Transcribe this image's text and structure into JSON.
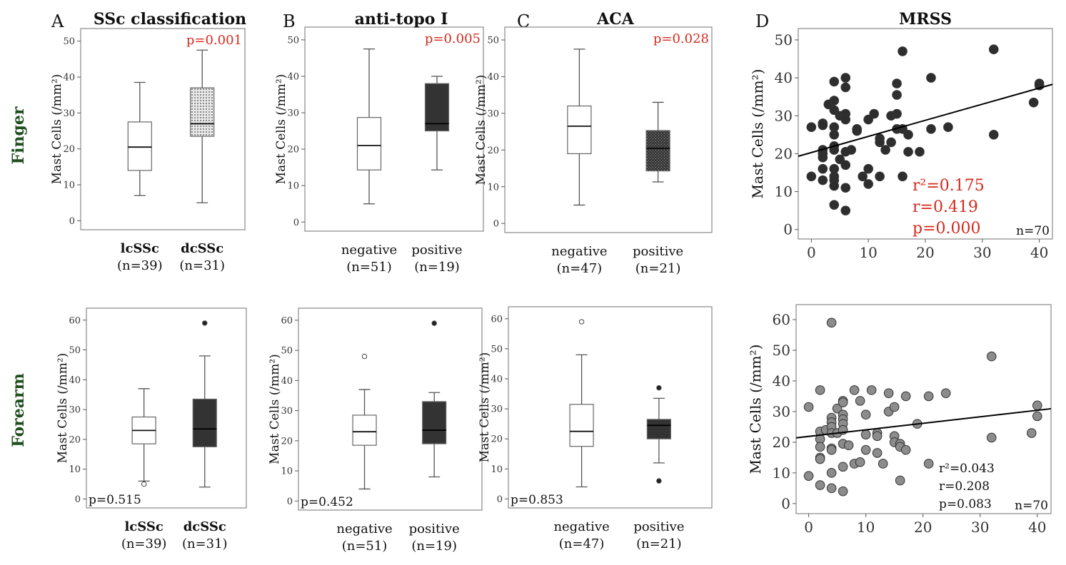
{
  "row_labels": [
    "Finger",
    "Forearm"
  ],
  "panel_letters": [
    "A",
    "B",
    "C",
    "D"
  ],
  "colors": {
    "row_label": "#1f4f1f",
    "significant": "#d42a1e",
    "dark_box": "#333333",
    "scatter_dark": "#2e2e2e",
    "scatter_gray": "#8c8c8c"
  },
  "chart_data": [
    {
      "type": "box",
      "row": "Finger",
      "panel": "A",
      "title": "SSc classification",
      "ylabel": "Mast Cells (/mm²)",
      "ylim": [
        -2.5,
        53.5
      ],
      "yticks": [
        0,
        10,
        20,
        30,
        40,
        50
      ],
      "pvalue": "p=0.001",
      "p_significant": true,
      "groups": [
        {
          "name": "lcSSc",
          "n": "(n=39)",
          "bold": true,
          "fill": "white",
          "min": 7,
          "q1": 14,
          "median": 20.5,
          "q3": 27.5,
          "max": 38.5,
          "outliers": []
        },
        {
          "name": "dcSSc",
          "n": "(n=31)",
          "bold": true,
          "fill": "dotted",
          "min": 5,
          "q1": 23.5,
          "median": 27,
          "q3": 37,
          "max": 47.5,
          "outliers": []
        }
      ]
    },
    {
      "type": "box",
      "row": "Finger",
      "panel": "B",
      "title": "anti-topo I",
      "ylabel": "Mast Cells (/mm²)",
      "ylim": [
        -2.5,
        53.5
      ],
      "yticks": [
        0,
        10,
        20,
        30,
        40,
        50
      ],
      "pvalue": "p=0.005",
      "p_significant": true,
      "groups": [
        {
          "name": "negative",
          "n": "(n=51)",
          "fill": "white",
          "min": 5,
          "q1": 14.3,
          "median": 21,
          "q3": 28.7,
          "max": 47.5,
          "outliers": []
        },
        {
          "name": "positive",
          "n": "(n=19)",
          "fill": "dark",
          "min": 14.3,
          "q1": 25,
          "median": 27,
          "q3": 38,
          "max": 40,
          "outliers": []
        }
      ]
    },
    {
      "type": "box",
      "row": "Finger",
      "panel": "C",
      "title": "ACA",
      "ylabel": "Mast Cells (/mm²)",
      "ylim": [
        -2.5,
        53.5
      ],
      "yticks": [
        0,
        10,
        20,
        30,
        40,
        50
      ],
      "pvalue": "p=0.028",
      "p_significant": true,
      "groups": [
        {
          "name": "negative",
          "n": "(n=47)",
          "fill": "white",
          "min": 5,
          "q1": 19,
          "median": 26.5,
          "q3": 32,
          "max": 47.5,
          "outliers": []
        },
        {
          "name": "positive",
          "n": "(n=21)",
          "fill": "hatched",
          "min": 11.3,
          "q1": 14.3,
          "median": 20.5,
          "q3": 25.3,
          "max": 33,
          "outliers": []
        }
      ]
    },
    {
      "type": "scatter",
      "row": "Finger",
      "panel": "D",
      "title": "MRSS",
      "ylabel": "Mast Cells (/mm²)",
      "xlim": [
        -2.3,
        42.3
      ],
      "ylim": [
        -2.5,
        53
      ],
      "xticks": [
        0,
        10,
        20,
        30,
        40
      ],
      "yticks": [
        0,
        10,
        20,
        30,
        40,
        50
      ],
      "stats": [
        "r²=0.175",
        "r=0.419",
        "p=0.000"
      ],
      "n": "n=70",
      "p_significant": true,
      "fit": {
        "intercept": 20.3,
        "slope": 0.425
      },
      "marker": "dark",
      "points": [
        [
          0,
          27
        ],
        [
          0,
          14
        ],
        [
          2,
          28
        ],
        [
          2,
          27.5
        ],
        [
          2,
          21
        ],
        [
          2,
          20
        ],
        [
          2,
          19
        ],
        [
          2,
          16
        ],
        [
          2,
          13
        ],
        [
          3,
          33
        ],
        [
          4,
          39
        ],
        [
          4,
          34
        ],
        [
          4,
          31.5
        ],
        [
          4,
          27
        ],
        [
          4,
          25
        ],
        [
          4,
          22
        ],
        [
          4,
          21
        ],
        [
          4,
          16
        ],
        [
          4,
          14
        ],
        [
          4,
          13
        ],
        [
          4,
          11.5
        ],
        [
          4,
          6.5
        ],
        [
          5,
          30
        ],
        [
          5,
          18.5
        ],
        [
          6,
          40
        ],
        [
          6,
          37.5
        ],
        [
          6,
          30.5
        ],
        [
          6,
          29
        ],
        [
          6,
          20.5
        ],
        [
          6,
          17
        ],
        [
          6,
          11
        ],
        [
          6,
          5
        ],
        [
          7,
          21
        ],
        [
          8,
          26.5
        ],
        [
          8,
          26
        ],
        [
          9,
          14
        ],
        [
          10,
          29
        ],
        [
          10,
          16
        ],
        [
          10,
          12
        ],
        [
          11,
          30.5
        ],
        [
          12,
          24
        ],
        [
          12,
          23
        ],
        [
          12,
          14
        ],
        [
          13,
          21
        ],
        [
          14,
          30
        ],
        [
          14,
          23
        ],
        [
          15,
          38.5
        ],
        [
          15,
          35.5
        ],
        [
          15,
          30.5
        ],
        [
          15,
          26.5
        ],
        [
          16,
          47
        ],
        [
          16,
          26.5
        ],
        [
          16,
          14
        ],
        [
          17,
          25
        ],
        [
          17,
          20.5
        ],
        [
          19,
          20.5
        ],
        [
          21,
          40
        ],
        [
          21,
          26.5
        ],
        [
          24,
          27
        ],
        [
          32,
          47.5
        ],
        [
          32,
          25
        ],
        [
          39,
          33.5
        ],
        [
          40,
          38.5
        ],
        [
          40,
          38
        ]
      ]
    },
    {
      "type": "box",
      "row": "Forearm",
      "panel": "A",
      "ylabel": "Mast Cells (/mm²)",
      "ylim": [
        -3,
        64
      ],
      "yticks": [
        0,
        10,
        20,
        30,
        40,
        50,
        60
      ],
      "pvalue": "p=0.515",
      "p_significant": false,
      "groups": [
        {
          "name": "lcSSc",
          "n": "(n=39)",
          "bold": true,
          "fill": "white",
          "min": 6,
          "q1": 18.5,
          "median": 23,
          "q3": 27.5,
          "max": 37,
          "outliers": [
            {
              "v": 5,
              "open": true
            }
          ]
        },
        {
          "name": "dcSSc",
          "n": "(n=31)",
          "bold": true,
          "fill": "dark",
          "min": 4,
          "q1": 17.5,
          "median": 23.5,
          "q3": 33.5,
          "max": 48,
          "outliers": [
            {
              "v": 59,
              "open": false
            }
          ]
        }
      ]
    },
    {
      "type": "box",
      "row": "Forearm",
      "panel": "B",
      "ylabel": "Mast Cells (/mm²)",
      "ylim": [
        -3,
        64
      ],
      "yticks": [
        0,
        10,
        20,
        30,
        40,
        50,
        60
      ],
      "pvalue": "p=0.452",
      "p_significant": false,
      "groups": [
        {
          "name": "negative",
          "n": "(n=51)",
          "fill": "white",
          "min": 4,
          "q1": 18.5,
          "median": 23,
          "q3": 28.5,
          "max": 37,
          "outliers": [
            {
              "v": 48,
              "open": true
            }
          ]
        },
        {
          "name": "positive",
          "n": "(n=19)",
          "fill": "dark",
          "min": 8,
          "q1": 19,
          "median": 23.5,
          "q3": 33,
          "max": 36,
          "outliers": [
            {
              "v": 59,
              "open": false
            }
          ]
        }
      ]
    },
    {
      "type": "box",
      "row": "Forearm",
      "panel": "C",
      "ylabel": "Mast Cells (/mm²)",
      "ylim": [
        -3,
        64
      ],
      "yticks": [
        0,
        10,
        20,
        30,
        40,
        50,
        60
      ],
      "pvalue": "p=0.853",
      "p_significant": false,
      "groups": [
        {
          "name": "negative",
          "n": "(n=47)",
          "fill": "white",
          "min": 4,
          "q1": 17.5,
          "median": 22.5,
          "q3": 31.5,
          "max": 48,
          "outliers": [
            {
              "v": 59,
              "open": true
            }
          ]
        },
        {
          "name": "positive",
          "n": "(n=21)",
          "fill": "dark",
          "min": 12,
          "q1": 20,
          "median": 24.5,
          "q3": 26.5,
          "max": 33.5,
          "outliers": [
            {
              "v": 37,
              "open": false
            },
            {
              "v": 6,
              "open": false
            }
          ]
        }
      ]
    },
    {
      "type": "scatter",
      "row": "Forearm",
      "panel": "D",
      "ylabel": "Mast Cells (/mm²)",
      "xlim": [
        -2.2,
        42.4
      ],
      "ylim": [
        -3.3,
        64.9
      ],
      "xticks": [
        0,
        10,
        20,
        30,
        40
      ],
      "yticks": [
        0,
        10,
        20,
        30,
        40,
        50,
        60
      ],
      "stats": [
        "r²=0.043",
        "r=0.208",
        "p=0.083"
      ],
      "n": "n=70",
      "p_significant": false,
      "fit": {
        "intercept": 21.9,
        "slope": 0.213
      },
      "marker": "gray",
      "points": [
        [
          0,
          31.5
        ],
        [
          0,
          9
        ],
        [
          2,
          37
        ],
        [
          2,
          23.5
        ],
        [
          2,
          21
        ],
        [
          2,
          18.5
        ],
        [
          2,
          15
        ],
        [
          2,
          14.5
        ],
        [
          2,
          6
        ],
        [
          3,
          24
        ],
        [
          4,
          59
        ],
        [
          4,
          28
        ],
        [
          4,
          26.5
        ],
        [
          4,
          25
        ],
        [
          4,
          23
        ],
        [
          4,
          18
        ],
        [
          4,
          17.5
        ],
        [
          4,
          10
        ],
        [
          4,
          5
        ],
        [
          5,
          31
        ],
        [
          5,
          23
        ],
        [
          6,
          33.5
        ],
        [
          6,
          33
        ],
        [
          6,
          29
        ],
        [
          6,
          27.5
        ],
        [
          6,
          26
        ],
        [
          6,
          24
        ],
        [
          6,
          19.5
        ],
        [
          6,
          12
        ],
        [
          6,
          4
        ],
        [
          7,
          19
        ],
        [
          8,
          37
        ],
        [
          8,
          13
        ],
        [
          9,
          33.5
        ],
        [
          9,
          13.5
        ],
        [
          10,
          29
        ],
        [
          10,
          22.5
        ],
        [
          10,
          17.5
        ],
        [
          11,
          37
        ],
        [
          12,
          23
        ],
        [
          12,
          22
        ],
        [
          12,
          16.5
        ],
        [
          13,
          13
        ],
        [
          14,
          36
        ],
        [
          14,
          30
        ],
        [
          15,
          31.5
        ],
        [
          15,
          22
        ],
        [
          15,
          20
        ],
        [
          16,
          19.5
        ],
        [
          16,
          18.5
        ],
        [
          16,
          7.5
        ],
        [
          17,
          35
        ],
        [
          17,
          17.5
        ],
        [
          19,
          26
        ],
        [
          21,
          35
        ],
        [
          21,
          13
        ],
        [
          24,
          36
        ],
        [
          32,
          48
        ],
        [
          32,
          21.5
        ],
        [
          39,
          23
        ],
        [
          40,
          32
        ],
        [
          40,
          28.5
        ]
      ]
    }
  ]
}
